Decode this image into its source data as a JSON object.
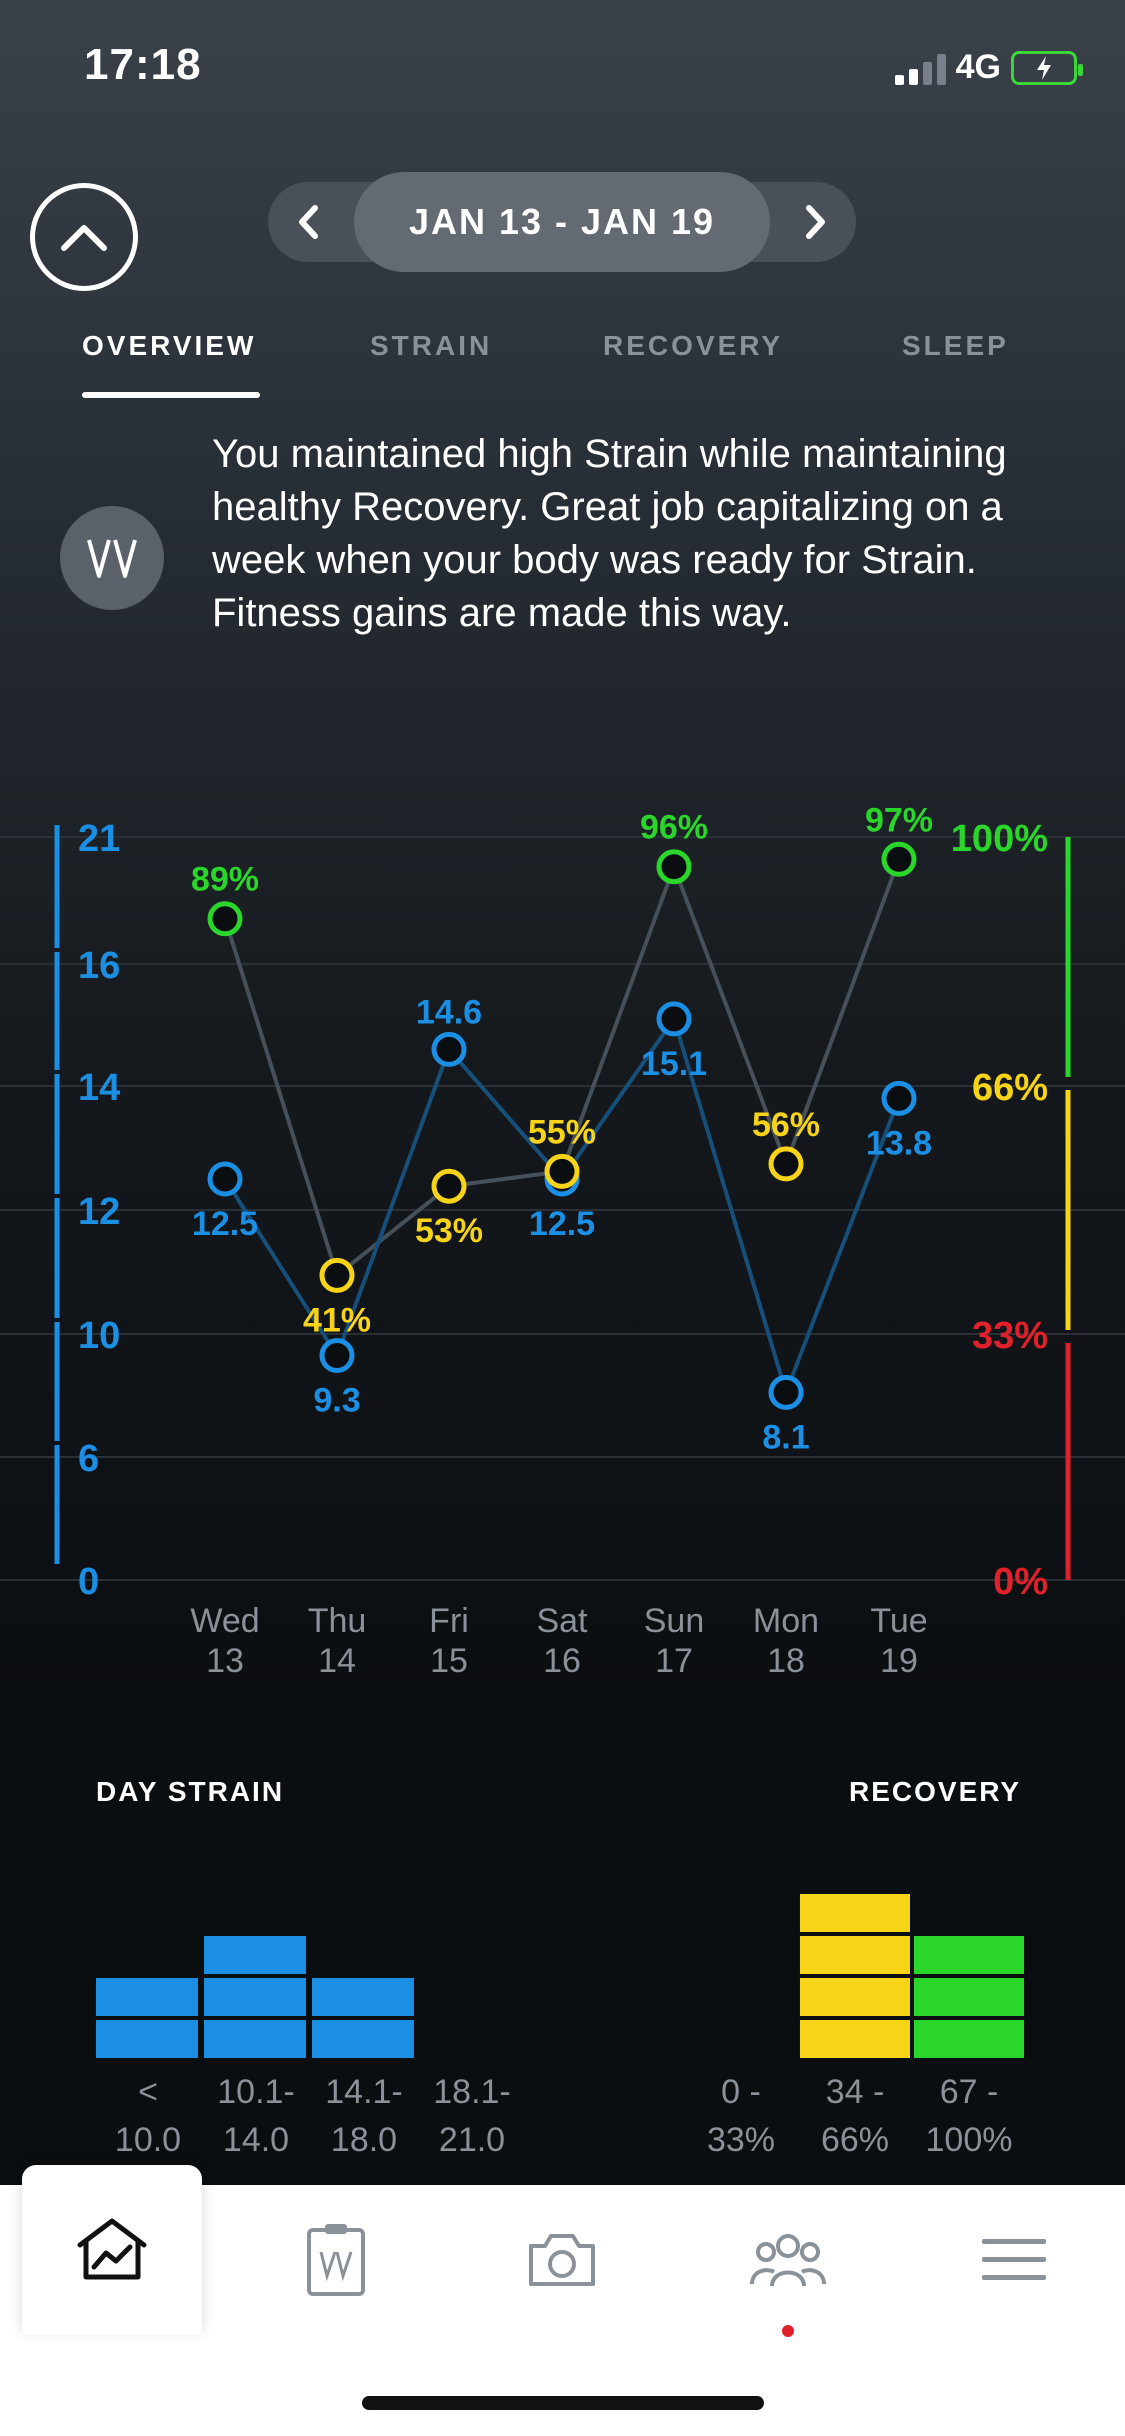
{
  "status": {
    "time": "17:18",
    "network": "4G"
  },
  "date_nav": {
    "range": "JAN 13 - JAN 19"
  },
  "tabs": [
    "OVERVIEW",
    "STRAIN",
    "RECOVERY",
    "SLEEP"
  ],
  "insight": {
    "text": "You maintained high Strain while maintaining healthy Recovery. Great job capitalizing on a week when your body was ready for Strain. Fitness gains are made this way."
  },
  "chart_data": {
    "type": "line",
    "categories": [
      "Wed 13",
      "Thu 14",
      "Fri 15",
      "Sat 16",
      "Sun 17",
      "Mon 18",
      "Tue 19"
    ],
    "left_axis": {
      "ticks": [
        "21",
        "16",
        "14",
        "12",
        "10",
        "6",
        "0"
      ]
    },
    "right_axis": {
      "ticks": [
        "100%",
        "66%",
        "33%",
        "0%"
      ]
    },
    "series": [
      {
        "values": [
          12.5,
          9.3,
          14.6,
          12.5,
          15.1,
          8.1,
          13.8
        ],
        "labels": [
          "12.5",
          "9.3",
          "14.6",
          "12.5",
          "15.1",
          "8.1",
          "13.8"
        ]
      },
      {
        "values": [
          89,
          41,
          53,
          55,
          96,
          56,
          97
        ],
        "labels": [
          "89%",
          "41%",
          "53%",
          "55%",
          "96%",
          "56%",
          "97%"
        ]
      }
    ],
    "colors": {
      "strain": "#1a8fe3",
      "green": "#2ad62a",
      "yellow": "#f7d417",
      "red": "#e0202a"
    }
  },
  "histograms": {
    "strain": {
      "title": "DAY STRAIN",
      "bins": [
        {
          "label1": "<",
          "label2": "10.0",
          "count": 2
        },
        {
          "label1": "10.1-",
          "label2": "14.0",
          "count": 3
        },
        {
          "label1": "14.1-",
          "label2": "18.0",
          "count": 2
        },
        {
          "label1": "18.1-",
          "label2": "21.0",
          "count": 0
        }
      ]
    },
    "recovery": {
      "title": "RECOVERY",
      "bins": [
        {
          "label1": "0 -",
          "label2": "33%",
          "count": 0,
          "color": "#e0202a"
        },
        {
          "label1": "34 -",
          "label2": "66%",
          "count": 4,
          "color": "#f7d417"
        },
        {
          "label1": "67 -",
          "label2": "100%",
          "count": 3,
          "color": "#2ad62a"
        }
      ]
    }
  },
  "tab_bar": {
    "items": [
      "home-icon",
      "journal-icon",
      "camera-icon",
      "community-icon",
      "menu-icon"
    ]
  }
}
